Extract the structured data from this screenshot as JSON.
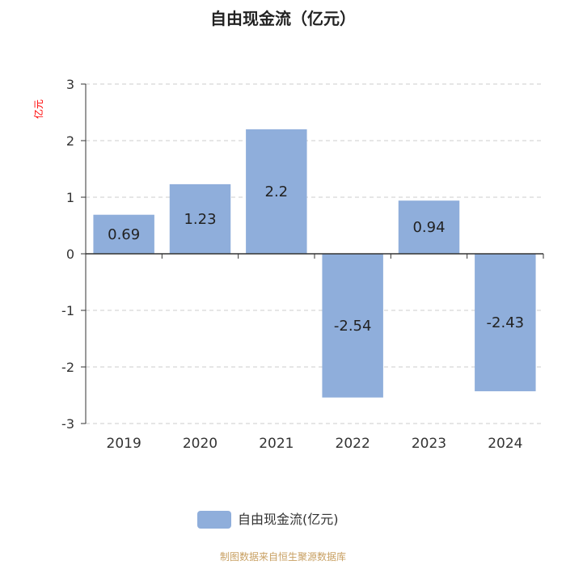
{
  "chart_data": {
    "type": "bar",
    "title": "自由现金流（亿元）",
    "ylabel": "亿元",
    "categories": [
      "2019",
      "2020",
      "2021",
      "2022",
      "2023",
      "2024"
    ],
    "series": [
      {
        "name": "自由现金流(亿元)",
        "values": [
          0.69,
          1.23,
          2.2,
          -2.54,
          0.94,
          -2.43
        ]
      }
    ],
    "ylim": [
      -3,
      3
    ],
    "yticks": [
      3,
      2,
      1,
      0,
      -1,
      -2,
      -3
    ],
    "grid": true,
    "legend_position": "bottom-center",
    "data_labels": [
      "0.69",
      "1.23",
      "2.2",
      "-2.54",
      "0.94",
      "-2.43"
    ]
  },
  "footer": {
    "source": "制图数据来自恒生聚源数据库"
  },
  "colors": {
    "bar": "#8faedb",
    "axis": "#333333",
    "grid": "#cccccc",
    "ylabel": "#ff0000",
    "footer": "#c8a063",
    "title": "#222222"
  }
}
